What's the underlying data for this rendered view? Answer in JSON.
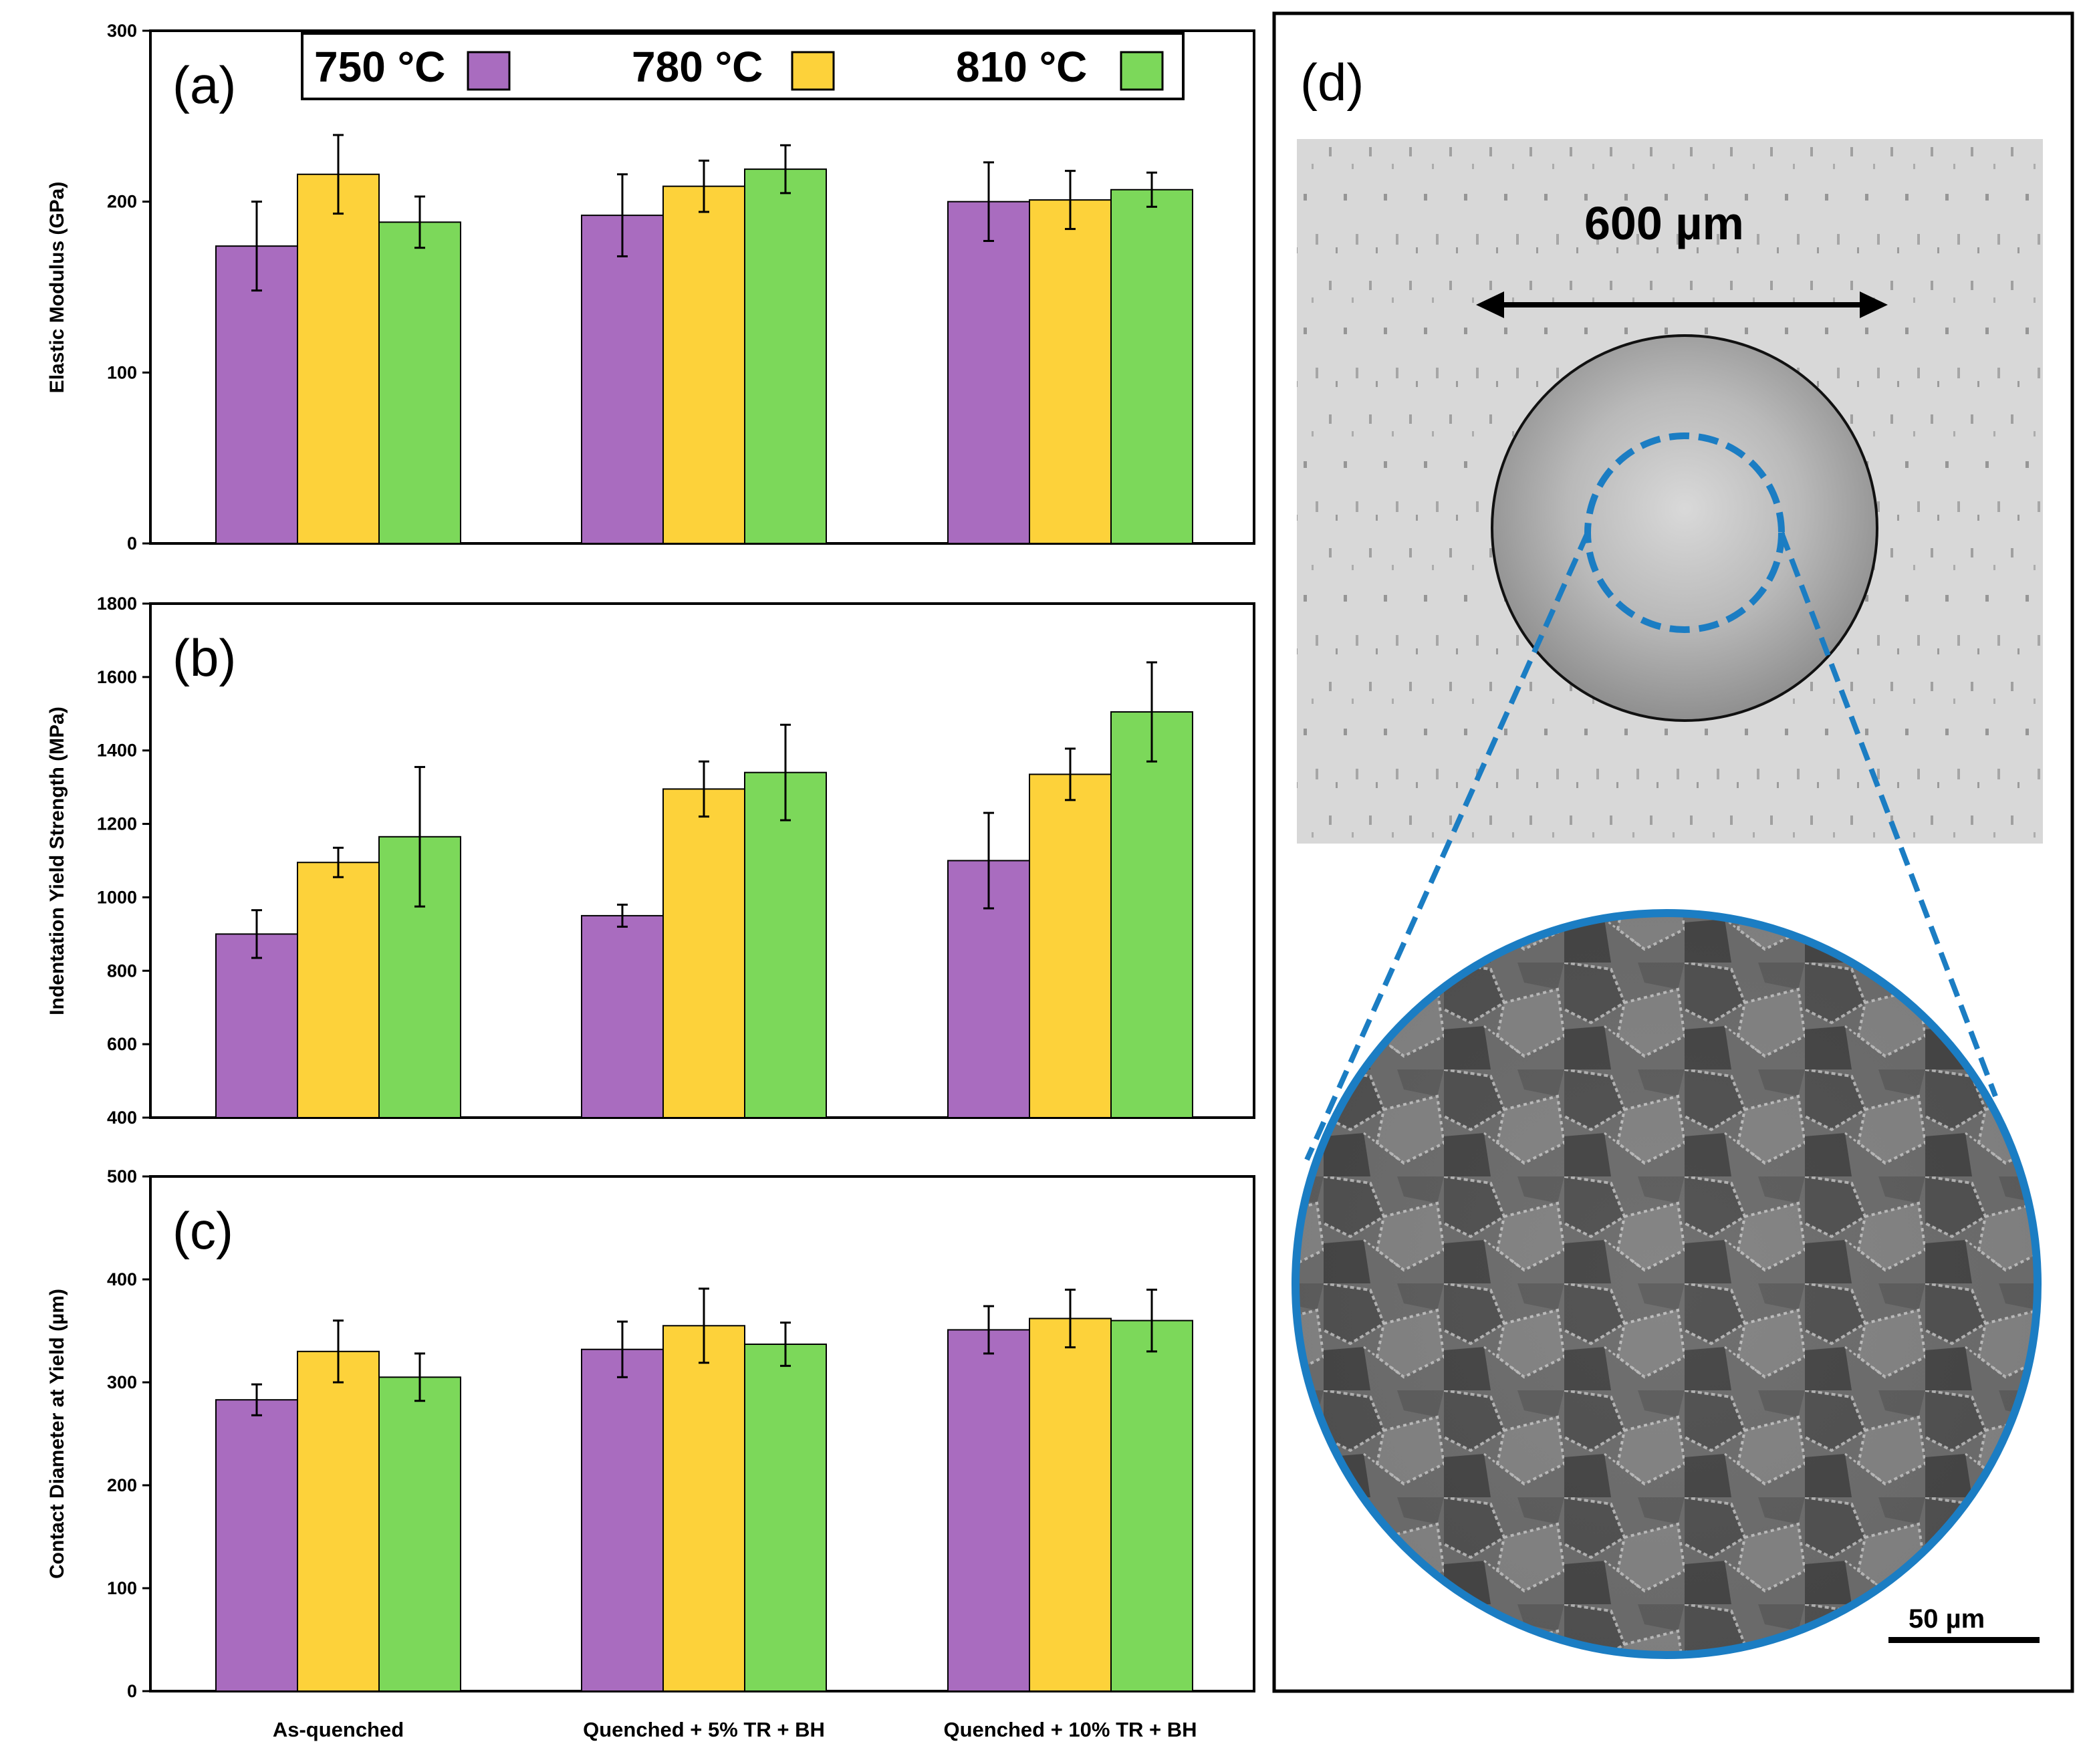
{
  "chart_data": [
    {
      "type": "bar",
      "panel_label": "(a)",
      "ylabel": "Elastic Modulus (GPa)",
      "ylim": [
        0,
        300
      ],
      "yticks": [
        "0",
        "100",
        "200",
        "300"
      ],
      "categories": [
        "As-quenched",
        "Quenched + 5% TR + BH",
        "Quenched + 10% TR + BH"
      ],
      "series": [
        {
          "name": "750 °C",
          "values": [
            174,
            192,
            200
          ],
          "errors": [
            26,
            24,
            23
          ]
        },
        {
          "name": "780 °C",
          "values": [
            216,
            209,
            201
          ],
          "errors": [
            23,
            15,
            17
          ]
        },
        {
          "name": "810 °C",
          "values": [
            188,
            219,
            207
          ],
          "errors": [
            15,
            14,
            10
          ]
        }
      ]
    },
    {
      "type": "bar",
      "panel_label": "(b)",
      "ylabel": "Indentation Yield Strength (MPa)",
      "ylim": [
        400,
        1800
      ],
      "yticks": [
        "400",
        "600",
        "800",
        "1000",
        "1200",
        "1400",
        "1600",
        "1800"
      ],
      "categories": [
        "As-quenched",
        "Quenched + 5% TR + BH",
        "Quenched + 10% TR + BH"
      ],
      "series": [
        {
          "name": "750 °C",
          "values": [
            900,
            950,
            1100
          ],
          "errors": [
            65,
            30,
            130
          ]
        },
        {
          "name": "780 °C",
          "values": [
            1095,
            1295,
            1335
          ],
          "errors": [
            40,
            75,
            70
          ]
        },
        {
          "name": "810 °C",
          "values": [
            1165,
            1340,
            1505
          ],
          "errors": [
            190,
            130,
            135
          ]
        }
      ]
    },
    {
      "type": "bar",
      "panel_label": "(c)",
      "ylabel": "Contact Diameter at Yield (µm)",
      "ylim": [
        0,
        500
      ],
      "yticks": [
        "0",
        "100",
        "200",
        "300",
        "400",
        "500"
      ],
      "categories": [
        "As-quenched",
        "Quenched + 5% TR + BH",
        "Quenched + 10% TR + BH"
      ],
      "series": [
        {
          "name": "750 °C",
          "values": [
            283,
            332,
            351
          ],
          "errors": [
            15,
            27,
            23
          ]
        },
        {
          "name": "780 °C",
          "values": [
            330,
            355,
            362
          ],
          "errors": [
            30,
            36,
            28
          ]
        },
        {
          "name": "810 °C",
          "values": [
            305,
            337,
            360
          ],
          "errors": [
            23,
            21,
            30
          ]
        }
      ]
    }
  ],
  "legend": {
    "items": [
      {
        "label": "750 °C",
        "color": "#a96cbf"
      },
      {
        "label": "780 °C",
        "color": "#fdd23a"
      },
      {
        "label": "810 °C",
        "color": "#7cd85a"
      }
    ]
  },
  "image_panel": {
    "label": "(d)",
    "dimension_label": "600 µm",
    "scale_bar_label": "50 µm",
    "highlight_color": "#1b7dc3"
  }
}
